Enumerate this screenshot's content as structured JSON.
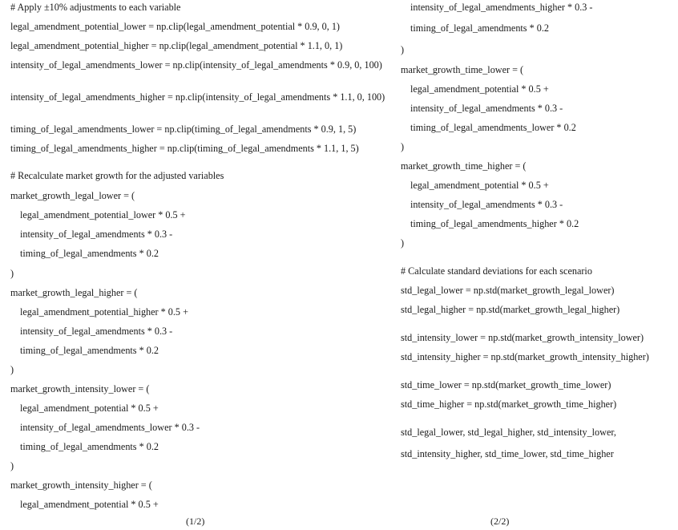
{
  "left_column": [
    "# Apply ±10% adjustments to each variable",
    "legal_amendment_potential_lower = np.clip(legal_amendment_potential * 0.9, 0, 1)",
    "legal_amendment_potential_higher = np.clip(legal_amendment_potential * 1.1, 0, 1)",
    "intensity_of_legal_amendments_lower = np.clip(intensity_of_legal_amendments * 0.9, 0, 100)",
    "intensity_of_legal_amendments_higher = np.clip(intensity_of_legal_amendments * 1.1, 0, 100)",
    "timing_of_legal_amendments_lower = np.clip(timing_of_legal_amendments * 0.9, 1, 5)",
    "timing_of_legal_amendments_higher = np.clip(timing_of_legal_amendments * 1.1, 1, 5)",
    "# Recalculate market growth for the adjusted variables",
    "market_growth_legal_lower = (",
    "legal_amendment_potential_lower * 0.5 +",
    "intensity_of_legal_amendments * 0.3 -",
    "timing_of_legal_amendments * 0.2",
    ")",
    "market_growth_legal_higher = (",
    "legal_amendment_potential_higher * 0.5 +",
    "intensity_of_legal_amendments * 0.3 -",
    "timing_of_legal_amendments * 0.2",
    ")",
    "market_growth_intensity_lower = (",
    "legal_amendment_potential * 0.5 +",
    "intensity_of_legal_amendments_lower * 0.3 -",
    "timing_of_legal_amendments * 0.2",
    ")",
    "market_growth_intensity_higher = (",
    "legal_amendment_potential * 0.5 +"
  ],
  "right_column": [
    "intensity_of_legal_amendments_higher * 0.3 -",
    "timing_of_legal_amendments * 0.2",
    ")",
    "market_growth_time_lower = (",
    "legal_amendment_potential * 0.5 +",
    "intensity_of_legal_amendments * 0.3 -",
    "timing_of_legal_amendments_lower * 0.2",
    ")",
    "market_growth_time_higher = (",
    "legal_amendment_potential * 0.5 +",
    "intensity_of_legal_amendments * 0.3 -",
    "timing_of_legal_amendments_higher * 0.2",
    ")",
    "# Calculate standard deviations for each scenario",
    "std_legal_lower = np.std(market_growth_legal_lower)",
    "std_legal_higher = np.std(market_growth_legal_higher)",
    "std_intensity_lower = np.std(market_growth_intensity_lower)",
    "std_intensity_higher = np.std(market_growth_intensity_higher)",
    "std_time_lower = np.std(market_growth_time_lower)",
    "std_time_higher = np.std(market_growth_time_higher)",
    "std_legal_lower, std_legal_higher, std_intensity_lower,",
    "std_intensity_higher, std_time_lower, std_time_higher"
  ],
  "page_numbers": {
    "left": "(1/2)",
    "right": "(2/2)"
  }
}
